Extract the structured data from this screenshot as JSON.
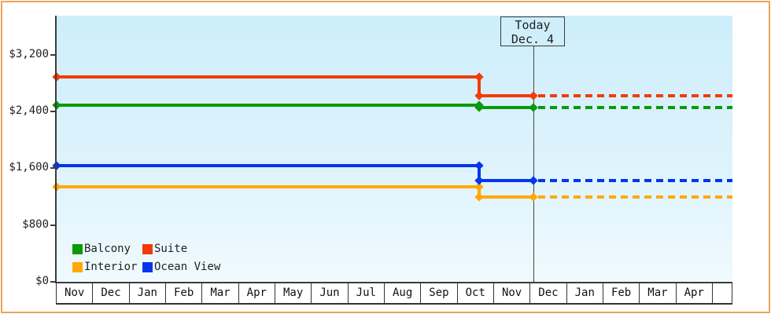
{
  "chart_data": {
    "type": "line",
    "title": "",
    "xlabel": "",
    "ylabel": "",
    "x_axis": {
      "months": [
        "Nov",
        "Dec",
        "Jan",
        "Feb",
        "Mar",
        "Apr",
        "May",
        "Jun",
        "Jul",
        "Aug",
        "Sep",
        "Oct",
        "Nov",
        "Dec",
        "Jan",
        "Feb",
        "Mar",
        "Apr"
      ]
    },
    "y_axis": {
      "ticks": [
        {
          "value": 3200,
          "label": "$3,200"
        },
        {
          "value": 2400,
          "label": "$2,400"
        },
        {
          "value": 1600,
          "label": "$1,600"
        },
        {
          "value": 800,
          "label": "$800"
        },
        {
          "value": 0,
          "label": "$0"
        }
      ],
      "unit": "USD"
    },
    "today_marker": {
      "line1": "Today",
      "line2": "Dec. 4",
      "month_position": 13.08
    },
    "price_change_month_position": 11.6,
    "series": [
      {
        "name": "Interior",
        "color": "#ffa808",
        "value_before": 1340,
        "value_after": 1200
      },
      {
        "name": "Ocean View",
        "color": "#0435ee",
        "value_before": 1640,
        "value_after": 1430
      },
      {
        "name": "Balcony",
        "color": "#0a9a0a",
        "value_before": 2490,
        "value_after": 2450
      },
      {
        "name": "Suite",
        "color": "#f33b08",
        "value_before": 2890,
        "value_after": 2620
      }
    ],
    "legend": {
      "position": "bottom-left",
      "items": [
        {
          "label": "Balcony",
          "color": "#0a9a0a"
        },
        {
          "label": "Suite",
          "color": "#f33b08"
        },
        {
          "label": "Interior",
          "color": "#ffa808"
        },
        {
          "label": "Ocean View",
          "color": "#0435ee"
        }
      ]
    }
  }
}
